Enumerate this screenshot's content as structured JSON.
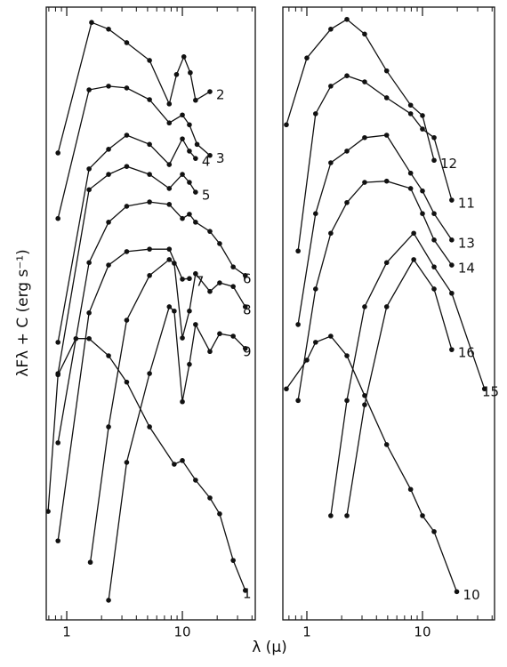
{
  "xlabel": "λ (μ)",
  "ylabel": "λFλ + C (erg s⁻¹)",
  "chart_data": [
    {
      "type": "line",
      "xscale": "log",
      "xlim": [
        0.665,
        42.7
      ],
      "ylim": [
        0,
        100
      ],
      "xticks": [
        1,
        10
      ],
      "xminorticks": [
        0.7,
        0.8,
        0.9,
        2,
        3,
        4,
        5,
        6,
        7,
        8,
        9,
        20,
        30,
        40
      ],
      "color": "#111111",
      "series": [
        {
          "name": "2",
          "x": [
            0.84,
            1.64,
            2.3,
            3.3,
            5.2,
            7.7,
            8.9,
            10.3,
            11.7,
            13,
            17.3
          ],
          "values": [
            76.2,
            97.5,
            96.4,
            94.2,
            91.3,
            84.2,
            89.0,
            91.9,
            89.3,
            84.8,
            86.2
          ]
        },
        {
          "name": "3",
          "x": [
            0.84,
            1.56,
            2.3,
            3.3,
            5.2,
            7.7,
            10,
            11.5,
            13.4,
            17.3
          ],
          "values": [
            65.5,
            86.5,
            87.1,
            86.8,
            84.9,
            81.1,
            82.4,
            80.8,
            77.6,
            75.8
          ]
        },
        {
          "name": "4",
          "x": [
            0.84,
            1.56,
            2.3,
            3.3,
            5.2,
            7.7,
            10,
            11.5,
            13
          ],
          "values": [
            45.3,
            73.6,
            76.8,
            79.1,
            77.6,
            74.3,
            78.5,
            76.5,
            75.3
          ]
        },
        {
          "name": "5",
          "x": [
            0.84,
            1.56,
            2.3,
            3.3,
            5.2,
            7.7,
            10,
            11.5,
            13
          ],
          "values": [
            40.2,
            70.2,
            72.7,
            74.0,
            72.7,
            70.4,
            72.7,
            71.4,
            69.8
          ]
        },
        {
          "name": "6",
          "x": [
            0.84,
            1.56,
            2.3,
            3.3,
            5.2,
            7.7,
            10,
            11.5,
            13,
            17.3,
            21,
            27.5,
            35
          ],
          "values": [
            28.9,
            58.3,
            64.9,
            67.5,
            68.2,
            67.8,
            65.5,
            66.2,
            64.9,
            63.4,
            61.4,
            57.6,
            56.2
          ]
        },
        {
          "name": "7",
          "x": [
            0.84,
            1.56,
            2.3,
            3.3,
            5.2,
            7.7,
            10,
            11.5
          ],
          "values": [
            12.9,
            50.1,
            57.9,
            60.1,
            60.5,
            60.5,
            55.6,
            55.7
          ]
        },
        {
          "name": "8",
          "x": [
            1.6,
            2.3,
            3.3,
            5.2,
            7.7,
            8.5,
            10,
            11.5,
            13,
            17.3,
            21,
            27.5,
            35
          ],
          "values": [
            9.4,
            31.5,
            48.9,
            56.2,
            58.8,
            58.2,
            46.0,
            50.4,
            56.5,
            53.6,
            55.0,
            54.4,
            51.1
          ]
        },
        {
          "name": "9",
          "x": [
            2.3,
            3.3,
            5.2,
            7.7,
            8.5,
            10,
            11.5,
            13,
            17.3,
            21,
            27.5,
            35
          ],
          "values": [
            3.2,
            25.7,
            40.2,
            51.1,
            50.4,
            35.6,
            41.7,
            48.2,
            43.8,
            46.7,
            46.3,
            44.3
          ]
        },
        {
          "name": "1",
          "x": [
            0.69,
            0.84,
            1.2,
            1.56,
            2.3,
            3.3,
            5.2,
            8.5,
            10,
            13,
            17.3,
            21,
            27.5,
            35
          ],
          "values": [
            17.7,
            40.0,
            45.9,
            45.9,
            43.1,
            38.8,
            31.5,
            25.4,
            26.0,
            22.8,
            19.9,
            17.3,
            9.7,
            4.8
          ]
        }
      ]
    },
    {
      "type": "line",
      "xscale": "log",
      "xlim": [
        0.62,
        42
      ],
      "ylim": [
        0,
        100
      ],
      "xticks": [
        1,
        10
      ],
      "xminorticks": [
        0.7,
        0.8,
        0.9,
        2,
        3,
        4,
        5,
        6,
        7,
        8,
        9,
        20,
        30,
        40
      ],
      "color": "#111111",
      "series": [
        {
          "name": "12",
          "x": [
            0.665,
            1,
            1.61,
            2.22,
            3.16,
            4.9,
            7.9,
            10,
            12.6
          ],
          "values": [
            80.8,
            91.7,
            96.4,
            98.0,
            95.6,
            89.6,
            84.0,
            82.3,
            75.0
          ]
        },
        {
          "name": "11",
          "x": [
            0.84,
            1.19,
            1.61,
            2.22,
            3.16,
            4.9,
            7.9,
            10,
            12.6,
            17.9
          ],
          "values": [
            60.2,
            82.6,
            87.1,
            88.8,
            87.8,
            85.2,
            82.6,
            80.1,
            78.7,
            68.5
          ]
        },
        {
          "name": "13",
          "x": [
            0.84,
            1.19,
            1.61,
            2.22,
            3.16,
            4.9,
            7.9,
            10,
            12.6,
            17.9
          ],
          "values": [
            48.2,
            66.3,
            74.6,
            76.5,
            78.7,
            79.1,
            72.9,
            70.0,
            66.3,
            62.0
          ]
        },
        {
          "name": "14",
          "x": [
            0.84,
            1.19,
            1.61,
            2.22,
            3.16,
            4.9,
            7.9,
            10,
            12.6,
            17.9
          ],
          "values": [
            35.8,
            54.0,
            63.1,
            68.1,
            71.4,
            71.6,
            70.4,
            66.3,
            62.0,
            57.9
          ]
        },
        {
          "name": "15",
          "x": [
            1.61,
            2.22,
            3.16,
            4.9,
            8.4,
            12.6,
            17.9,
            34.4
          ],
          "values": [
            17.0,
            35.8,
            51.1,
            58.3,
            63.1,
            57.6,
            53.3,
            37.7
          ]
        },
        {
          "name": "16",
          "x": [
            2.22,
            3.16,
            4.9,
            8.4,
            12.6,
            17.9
          ],
          "values": [
            17.0,
            35.1,
            51.1,
            58.8,
            54.0,
            44.1
          ]
        },
        {
          "name": "10",
          "x": [
            0.665,
            1,
            1.19,
            1.61,
            2.22,
            3.16,
            4.9,
            7.9,
            10,
            12.6,
            19.8
          ],
          "values": [
            37.7,
            42.4,
            45.3,
            46.3,
            43.1,
            36.6,
            28.6,
            21.3,
            17.0,
            14.4,
            4.6
          ]
        }
      ]
    }
  ]
}
